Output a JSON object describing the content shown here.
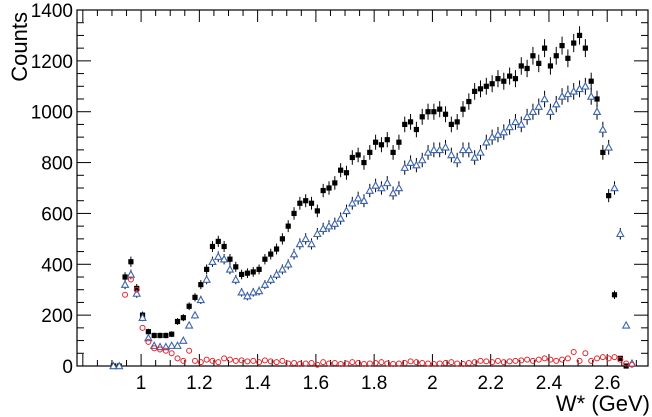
{
  "chart_data": {
    "type": "scatter",
    "xlabel": "W* (GeV)",
    "ylabel": "Counts",
    "xlim": [
      0.78,
      2.74
    ],
    "ylim": [
      0,
      1400
    ],
    "x_ticks": [
      "1",
      "1.2",
      "1.4",
      "1.6",
      "1.8",
      "2",
      "2.2",
      "2.4",
      "2.6"
    ],
    "y_ticks": [
      "0",
      "200",
      "400",
      "600",
      "800",
      "1000",
      "1200",
      "1400"
    ],
    "grid": false,
    "legend": "none",
    "series": [
      {
        "marker": "filled-square",
        "color": "#000000",
        "errorbars": true,
        "points": [
          [
            0.905,
            0
          ],
          [
            0.925,
            0
          ],
          [
            0.945,
            350
          ],
          [
            0.965,
            410
          ],
          [
            0.985,
            305
          ],
          [
            1.005,
            200
          ],
          [
            1.025,
            135
          ],
          [
            1.045,
            120
          ],
          [
            1.065,
            120
          ],
          [
            1.085,
            120
          ],
          [
            1.105,
            125
          ],
          [
            1.125,
            175
          ],
          [
            1.145,
            190
          ],
          [
            1.165,
            235
          ],
          [
            1.185,
            270
          ],
          [
            1.205,
            320
          ],
          [
            1.225,
            380
          ],
          [
            1.245,
            470
          ],
          [
            1.265,
            490
          ],
          [
            1.285,
            470
          ],
          [
            1.305,
            420
          ],
          [
            1.325,
            390
          ],
          [
            1.345,
            360
          ],
          [
            1.365,
            365
          ],
          [
            1.385,
            370
          ],
          [
            1.405,
            380
          ],
          [
            1.425,
            420
          ],
          [
            1.445,
            440
          ],
          [
            1.465,
            460
          ],
          [
            1.485,
            500
          ],
          [
            1.505,
            550
          ],
          [
            1.525,
            600
          ],
          [
            1.545,
            640
          ],
          [
            1.565,
            650
          ],
          [
            1.585,
            640
          ],
          [
            1.605,
            610
          ],
          [
            1.625,
            690
          ],
          [
            1.645,
            700
          ],
          [
            1.665,
            720
          ],
          [
            1.685,
            770
          ],
          [
            1.705,
            760
          ],
          [
            1.725,
            820
          ],
          [
            1.745,
            830
          ],
          [
            1.765,
            800
          ],
          [
            1.785,
            840
          ],
          [
            1.805,
            880
          ],
          [
            1.825,
            870
          ],
          [
            1.845,
            890
          ],
          [
            1.865,
            840
          ],
          [
            1.885,
            880
          ],
          [
            1.905,
            950
          ],
          [
            1.925,
            960
          ],
          [
            1.945,
            930
          ],
          [
            1.965,
            980
          ],
          [
            1.985,
            1000
          ],
          [
            2.005,
            1000
          ],
          [
            2.025,
            1010
          ],
          [
            2.045,
            990
          ],
          [
            2.065,
            950
          ],
          [
            2.085,
            960
          ],
          [
            2.105,
            1010
          ],
          [
            2.125,
            1040
          ],
          [
            2.145,
            1080
          ],
          [
            2.165,
            1090
          ],
          [
            2.185,
            1100
          ],
          [
            2.205,
            1110
          ],
          [
            2.225,
            1130
          ],
          [
            2.245,
            1120
          ],
          [
            2.265,
            1140
          ],
          [
            2.285,
            1130
          ],
          [
            2.305,
            1180
          ],
          [
            2.325,
            1170
          ],
          [
            2.345,
            1220
          ],
          [
            2.365,
            1190
          ],
          [
            2.385,
            1250
          ],
          [
            2.405,
            1180
          ],
          [
            2.425,
            1220
          ],
          [
            2.445,
            1260
          ],
          [
            2.465,
            1210
          ],
          [
            2.485,
            1270
          ],
          [
            2.505,
            1300
          ],
          [
            2.525,
            1250
          ],
          [
            2.545,
            1120
          ],
          [
            2.565,
            1050
          ],
          [
            2.585,
            840
          ],
          [
            2.605,
            670
          ],
          [
            2.625,
            280
          ],
          [
            2.645,
            30
          ],
          [
            2.665,
            0
          ]
        ]
      },
      {
        "marker": "open-triangle",
        "color": "#3a63b0",
        "errorbars": true,
        "points": [
          [
            0.905,
            0
          ],
          [
            0.925,
            0
          ],
          [
            0.945,
            320
          ],
          [
            0.965,
            360
          ],
          [
            0.985,
            285
          ],
          [
            1.005,
            190
          ],
          [
            1.025,
            110
          ],
          [
            1.045,
            80
          ],
          [
            1.065,
            75
          ],
          [
            1.085,
            75
          ],
          [
            1.105,
            80
          ],
          [
            1.125,
            80
          ],
          [
            1.145,
            100
          ],
          [
            1.165,
            160
          ],
          [
            1.185,
            200
          ],
          [
            1.205,
            260
          ],
          [
            1.225,
            340
          ],
          [
            1.245,
            410
          ],
          [
            1.265,
            430
          ],
          [
            1.285,
            420
          ],
          [
            1.305,
            380
          ],
          [
            1.325,
            340
          ],
          [
            1.345,
            290
          ],
          [
            1.365,
            275
          ],
          [
            1.385,
            290
          ],
          [
            1.405,
            295
          ],
          [
            1.425,
            320
          ],
          [
            1.445,
            340
          ],
          [
            1.465,
            360
          ],
          [
            1.485,
            380
          ],
          [
            1.505,
            400
          ],
          [
            1.525,
            440
          ],
          [
            1.545,
            480
          ],
          [
            1.565,
            500
          ],
          [
            1.585,
            480
          ],
          [
            1.605,
            520
          ],
          [
            1.625,
            540
          ],
          [
            1.645,
            550
          ],
          [
            1.665,
            560
          ],
          [
            1.685,
            580
          ],
          [
            1.705,
            610
          ],
          [
            1.725,
            640
          ],
          [
            1.745,
            660
          ],
          [
            1.765,
            650
          ],
          [
            1.785,
            690
          ],
          [
            1.805,
            710
          ],
          [
            1.825,
            700
          ],
          [
            1.845,
            720
          ],
          [
            1.865,
            680
          ],
          [
            1.885,
            700
          ],
          [
            1.905,
            780
          ],
          [
            1.925,
            800
          ],
          [
            1.945,
            790
          ],
          [
            1.965,
            810
          ],
          [
            1.985,
            840
          ],
          [
            2.005,
            850
          ],
          [
            2.025,
            850
          ],
          [
            2.045,
            860
          ],
          [
            2.065,
            830
          ],
          [
            2.085,
            810
          ],
          [
            2.105,
            850
          ],
          [
            2.125,
            850
          ],
          [
            2.145,
            820
          ],
          [
            2.165,
            840
          ],
          [
            2.185,
            880
          ],
          [
            2.205,
            900
          ],
          [
            2.225,
            910
          ],
          [
            2.245,
            920
          ],
          [
            2.265,
            940
          ],
          [
            2.285,
            960
          ],
          [
            2.305,
            950
          ],
          [
            2.325,
            980
          ],
          [
            2.345,
            1000
          ],
          [
            2.365,
            1020
          ],
          [
            2.385,
            1050
          ],
          [
            2.405,
            1000
          ],
          [
            2.425,
            1030
          ],
          [
            2.445,
            1060
          ],
          [
            2.465,
            1070
          ],
          [
            2.485,
            1080
          ],
          [
            2.505,
            1090
          ],
          [
            2.525,
            1100
          ],
          [
            2.545,
            1060
          ],
          [
            2.565,
            1000
          ],
          [
            2.585,
            930
          ],
          [
            2.605,
            860
          ],
          [
            2.625,
            700
          ],
          [
            2.645,
            520
          ],
          [
            2.665,
            160
          ],
          [
            2.685,
            10
          ]
        ]
      },
      {
        "marker": "open-circle",
        "color": "#e3242b",
        "errorbars": false,
        "points": [
          [
            0.945,
            280
          ],
          [
            0.965,
            340
          ],
          [
            0.985,
            300
          ],
          [
            1.005,
            150
          ],
          [
            1.025,
            95
          ],
          [
            1.045,
            70
          ],
          [
            1.065,
            65
          ],
          [
            1.085,
            60
          ],
          [
            1.105,
            50
          ],
          [
            1.125,
            30
          ],
          [
            1.145,
            20
          ],
          [
            1.165,
            60
          ],
          [
            1.185,
            20
          ],
          [
            1.205,
            15
          ],
          [
            1.225,
            25
          ],
          [
            1.245,
            20
          ],
          [
            1.265,
            15
          ],
          [
            1.285,
            30
          ],
          [
            1.305,
            25
          ],
          [
            1.325,
            20
          ],
          [
            1.345,
            22
          ],
          [
            1.365,
            18
          ],
          [
            1.385,
            20
          ],
          [
            1.405,
            15
          ],
          [
            1.425,
            22
          ],
          [
            1.445,
            18
          ],
          [
            1.465,
            15
          ],
          [
            1.485,
            20
          ],
          [
            1.505,
            10
          ],
          [
            1.525,
            12
          ],
          [
            1.545,
            8
          ],
          [
            1.565,
            10
          ],
          [
            1.585,
            12
          ],
          [
            1.605,
            5
          ],
          [
            1.625,
            15
          ],
          [
            1.645,
            10
          ],
          [
            1.665,
            12
          ],
          [
            1.685,
            8
          ],
          [
            1.705,
            10
          ],
          [
            1.725,
            15
          ],
          [
            1.745,
            12
          ],
          [
            1.765,
            8
          ],
          [
            1.785,
            10
          ],
          [
            1.805,
            12
          ],
          [
            1.825,
            15
          ],
          [
            1.845,
            10
          ],
          [
            1.865,
            8
          ],
          [
            1.885,
            10
          ],
          [
            1.905,
            12
          ],
          [
            1.925,
            18
          ],
          [
            1.945,
            15
          ],
          [
            1.965,
            12
          ],
          [
            1.985,
            10
          ],
          [
            2.005,
            8
          ],
          [
            2.025,
            10
          ],
          [
            2.045,
            12
          ],
          [
            2.065,
            15
          ],
          [
            2.085,
            10
          ],
          [
            2.105,
            8
          ],
          [
            2.125,
            12
          ],
          [
            2.145,
            15
          ],
          [
            2.165,
            20
          ],
          [
            2.185,
            18
          ],
          [
            2.205,
            15
          ],
          [
            2.225,
            20
          ],
          [
            2.245,
            15
          ],
          [
            2.265,
            18
          ],
          [
            2.285,
            20
          ],
          [
            2.305,
            22
          ],
          [
            2.325,
            25
          ],
          [
            2.345,
            20
          ],
          [
            2.365,
            25
          ],
          [
            2.385,
            30
          ],
          [
            2.405,
            25
          ],
          [
            2.425,
            20
          ],
          [
            2.445,
            25
          ],
          [
            2.465,
            30
          ],
          [
            2.485,
            55
          ],
          [
            2.505,
            20
          ],
          [
            2.525,
            50
          ],
          [
            2.545,
            20
          ],
          [
            2.565,
            30
          ],
          [
            2.585,
            35
          ],
          [
            2.605,
            30
          ],
          [
            2.625,
            35
          ],
          [
            2.645,
            25
          ],
          [
            2.665,
            10
          ],
          [
            2.685,
            5
          ]
        ]
      }
    ]
  }
}
